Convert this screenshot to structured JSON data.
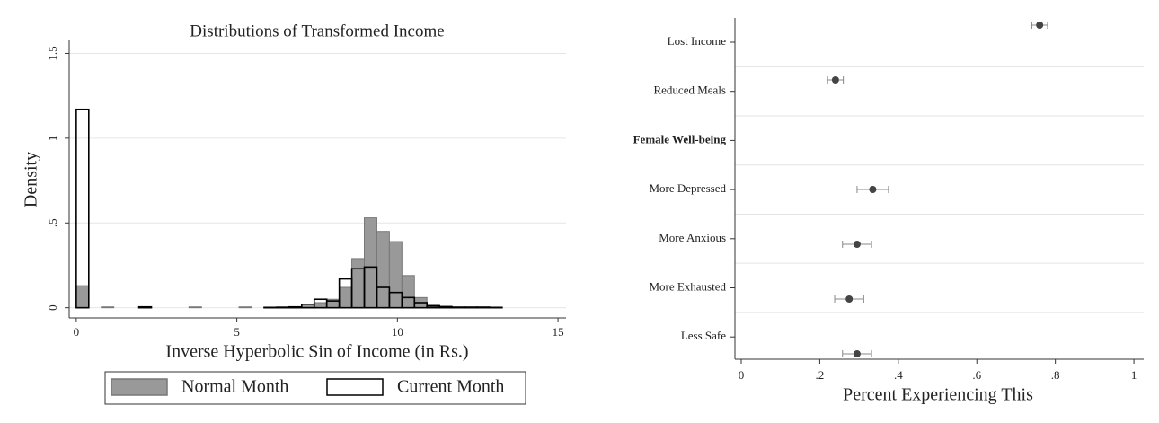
{
  "chart_data": [
    {
      "type": "histogram",
      "title": "Distributions of Transformed Income",
      "x_label": "Inverse Hyperbolic Sin of Income (in Rs.)",
      "y_label": "Density",
      "bins": [
        0,
        0.39,
        0.78,
        1.17,
        1.56,
        1.95,
        2.34,
        2.73,
        3.12,
        3.51,
        3.9,
        4.29,
        4.68,
        5.07,
        5.46,
        5.85,
        6.24,
        6.63,
        7.02,
        7.41,
        7.8,
        8.19,
        8.58,
        8.97,
        9.36,
        9.75,
        10.14,
        10.53,
        10.92,
        11.31,
        11.7,
        12.09,
        12.48,
        12.87,
        13.26
      ],
      "series": [
        {
          "name": "Normal Month",
          "color": "#999999",
          "values": [
            0.13,
            0,
            0.005,
            0,
            0,
            0,
            0,
            0,
            0,
            0.005,
            0,
            0,
            0,
            0.005,
            0,
            0.003,
            0.003,
            0.005,
            0.01,
            0.03,
            0.05,
            0.12,
            0.29,
            0.53,
            0.45,
            0.39,
            0.19,
            0.06,
            0.02,
            0.01,
            0.005,
            0.005,
            0.005,
            0.003
          ]
        },
        {
          "name": "Current Month",
          "color": "#000000",
          "values": [
            1.17,
            0,
            0,
            0,
            0,
            0.005,
            0,
            0,
            0,
            0,
            0,
            0,
            0,
            0,
            0,
            0.002,
            0.003,
            0.005,
            0.02,
            0.05,
            0.04,
            0.17,
            0.23,
            0.24,
            0.12,
            0.09,
            0.06,
            0.03,
            0.01,
            0.005,
            0.003,
            0.003,
            0.003,
            0.002
          ]
        }
      ],
      "xlim": [
        -0.22,
        15.25
      ],
      "xticks": [
        0,
        5,
        10,
        15
      ],
      "ylim": [
        -0.06,
        1.55
      ],
      "yticks": [
        0,
        {
          "value": 0.5,
          "label": ".5"
        },
        1,
        1.5
      ],
      "grid": true
    },
    {
      "type": "dot",
      "categories": [
        "Lost Income",
        "Reduced Meals",
        "Female Well-being",
        "More Depressed",
        "More Anxious",
        "More Exhausted",
        "Less Safe"
      ],
      "bold": [
        false,
        false,
        true,
        false,
        false,
        false,
        false
      ],
      "values": [
        0.76,
        0.24,
        null,
        0.335,
        0.295,
        0.275,
        0.295
      ],
      "errors": [
        0.02,
        0.02,
        null,
        0.04,
        0.037,
        0.037,
        0.037
      ],
      "color": "#444444",
      "x_label": "Percent Experiencing This",
      "xlim": [
        -0.016,
        1.025
      ],
      "xticks": [
        0,
        {
          "value": 0.2,
          "label": ".2"
        },
        {
          "value": 0.4,
          "label": ".4"
        },
        {
          "value": 0.6,
          "label": ".6"
        },
        {
          "value": 0.8,
          "label": ".8"
        },
        1
      ]
    }
  ]
}
